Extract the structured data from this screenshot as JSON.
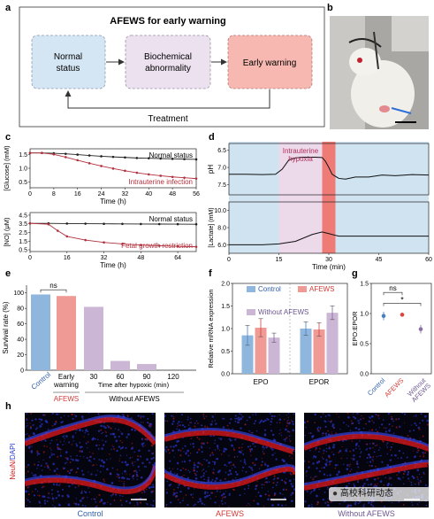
{
  "panel_labels": {
    "a": "a",
    "b": "b",
    "c": "c",
    "d": "d",
    "e": "e",
    "f": "f",
    "g": "g",
    "h": "h"
  },
  "panel_a": {
    "title": "AFEWS for early warning",
    "box1": [
      "Normal",
      "status"
    ],
    "box2": [
      "Biochemical",
      "abnormality"
    ],
    "box3": "Early warning",
    "feedback": "Treatment",
    "colors": {
      "box1": "#d4e6f4",
      "box2": "#ece2ef",
      "box3": "#f6b8b0"
    }
  },
  "panel_c": {
    "top": {
      "ylabel": "[Glucose] (mM)",
      "xlabel": "Time (h)",
      "xticks": [
        "0",
        "8",
        "16",
        "24",
        "32",
        "40",
        "48",
        "56"
      ],
      "yticks": [
        "1.5",
        "1.0",
        "0.5"
      ],
      "normal_label": "Normal status",
      "abnormal_label": "Intrauterine infection"
    },
    "bottom": {
      "ylabel": "[NO] (μM)",
      "xlabel": "Time (h)",
      "xticks": [
        "0",
        "16",
        "32",
        "48",
        "64"
      ],
      "yticks": [
        "4.5",
        "3.5",
        "2.5",
        "1.5",
        "0.5"
      ],
      "normal_label": "Normal status",
      "abnormal_label": "Fetal growth restriction"
    }
  },
  "panel_d": {
    "ylabel_top": "pH",
    "ylabel_bottom": "[Lactate] (mM)",
    "yticks_top": [
      "6.5",
      "7.0",
      "7.5"
    ],
    "yticks_bottom": [
      "10.0",
      "8.0",
      "6.0"
    ],
    "xticks": [
      "0",
      "15",
      "30",
      "45",
      "60"
    ],
    "xlabel": "Time (min)",
    "annotation": [
      "Intrauterine",
      "hypoxia"
    ]
  },
  "chart_data": [
    {
      "type": "line",
      "ylabel": "[Glucose] (mM)",
      "xlabel": "Time (h)",
      "xlim": [
        0,
        56
      ],
      "ylim": [
        0.3,
        1.7
      ],
      "series": [
        {
          "name": "Normal status",
          "x": [
            0,
            4,
            8,
            12,
            16,
            20,
            24,
            28,
            32,
            36,
            40,
            44,
            48,
            52,
            56
          ],
          "y": [
            1.55,
            1.55,
            1.54,
            1.52,
            1.49,
            1.46,
            1.43,
            1.41,
            1.39,
            1.37,
            1.36,
            1.35,
            1.34,
            1.33,
            1.32
          ]
        },
        {
          "name": "Intrauterine infection",
          "x": [
            0,
            4,
            8,
            12,
            16,
            20,
            24,
            28,
            32,
            36,
            40,
            44,
            48,
            52,
            56
          ],
          "y": [
            1.55,
            1.55,
            1.5,
            1.4,
            1.29,
            1.18,
            1.08,
            0.99,
            0.91,
            0.84,
            0.78,
            0.73,
            0.69,
            0.66,
            0.63
          ]
        }
      ]
    },
    {
      "type": "line",
      "ylabel": "[NO] (μM)",
      "xlabel": "Time (h)",
      "xlim": [
        0,
        72
      ],
      "ylim": [
        0.3,
        4.8
      ],
      "series": [
        {
          "name": "Normal status",
          "x": [
            0,
            8,
            16,
            24,
            32,
            40,
            48,
            56,
            64,
            72
          ],
          "y": [
            3.55,
            3.55,
            3.53,
            3.52,
            3.5,
            3.49,
            3.48,
            3.47,
            3.46,
            3.45
          ]
        },
        {
          "name": "Fetal growth restriction",
          "x": [
            0,
            8,
            12,
            16,
            24,
            32,
            40,
            48,
            56,
            64,
            72
          ],
          "y": [
            3.55,
            3.45,
            2.7,
            2.05,
            1.62,
            1.35,
            1.18,
            1.05,
            0.97,
            0.9,
            0.85
          ]
        }
      ]
    },
    {
      "type": "line",
      "ylabel": "pH",
      "xlabel": "Time (min)",
      "xlim": [
        0,
        60
      ],
      "ylim_reversed": [
        6.3,
        7.8
      ],
      "series": [
        {
          "name": "pH",
          "x": [
            0,
            5,
            10,
            14,
            16,
            18,
            20,
            22,
            24,
            26,
            28,
            29,
            30,
            31,
            33,
            35,
            38,
            42,
            46,
            50,
            55,
            60
          ],
          "y": [
            7.2,
            7.2,
            7.21,
            7.2,
            7.05,
            6.78,
            6.72,
            6.7,
            6.7,
            6.7,
            6.71,
            6.82,
            7.0,
            7.2,
            7.32,
            7.34,
            7.28,
            7.28,
            7.22,
            7.24,
            7.21,
            7.22
          ]
        }
      ]
    },
    {
      "type": "line",
      "ylabel": "[Lactate] (mM)",
      "xlabel": "Time (min)",
      "xlim": [
        0,
        60
      ],
      "ylim": [
        5.0,
        11.0
      ],
      "series": [
        {
          "name": "Lactate",
          "x": [
            0,
            10,
            15,
            20,
            25,
            28,
            30,
            33,
            40,
            50,
            60
          ],
          "y": [
            6.0,
            6.0,
            6.1,
            6.4,
            7.2,
            7.5,
            7.3,
            7.0,
            7.0,
            7.0,
            7.0
          ]
        }
      ]
    },
    {
      "type": "bar",
      "ylabel": "Survival rate (%)",
      "yticks": [
        "0",
        "20",
        "40",
        "60",
        "80",
        "100"
      ],
      "ylim": [
        0,
        110
      ],
      "categories": [
        "Control",
        "Early warning",
        "30",
        "60",
        "90",
        "120"
      ],
      "values": [
        98,
        96,
        82,
        12,
        8,
        0
      ],
      "colors": [
        "#8fb7de",
        "#ef9a94",
        "#cbb6d6",
        "#cbb6d6",
        "#cbb6d6",
        "#cbb6d6"
      ],
      "significance": "ns",
      "group_label_1": "AFEWS",
      "group_label_2": "Without AFEWS",
      "xaxis_note": "Time after hypoxic (min)"
    },
    {
      "type": "bar",
      "ylabel": "Relative mRNA expression",
      "yticks": [
        "0.0",
        "0.5",
        "1.0",
        "1.5",
        "2.0"
      ],
      "ylim": [
        0,
        2.0
      ],
      "categories": [
        "EPO",
        "EPOR"
      ],
      "series": [
        {
          "name": "Control",
          "values": [
            0.85,
            1.0
          ],
          "errors": [
            0.22,
            0.15
          ],
          "color": "#8fb7de"
        },
        {
          "name": "AFEWS",
          "values": [
            1.02,
            0.98
          ],
          "errors": [
            0.2,
            0.15
          ],
          "color": "#ef9a94"
        },
        {
          "name": "Without AFEWS",
          "values": [
            0.8,
            1.35
          ],
          "errors": [
            0.1,
            0.15
          ],
          "color": "#cbb6d6"
        }
      ]
    },
    {
      "type": "scatter",
      "ylabel": "EPO:EPOR",
      "yticks": [
        "0.0",
        "0.5",
        "1.0",
        "1.5"
      ],
      "ylim": [
        0,
        1.5
      ],
      "categories": [
        "Control",
        "AFEWS",
        "Without AFEWS"
      ],
      "values": [
        0.96,
        0.98,
        0.74
      ],
      "errors": [
        0.07,
        0.03,
        0.07
      ],
      "colors": [
        "#4a7fc0",
        "#e0433f",
        "#8a70a6"
      ],
      "significance": [
        "ns",
        "*"
      ]
    }
  ],
  "panel_h": {
    "ylabel": "NeuN/DAPI",
    "labels": [
      "Control",
      "AFEWS",
      "Without AFEWS"
    ],
    "watermark": "高校科研动态"
  }
}
